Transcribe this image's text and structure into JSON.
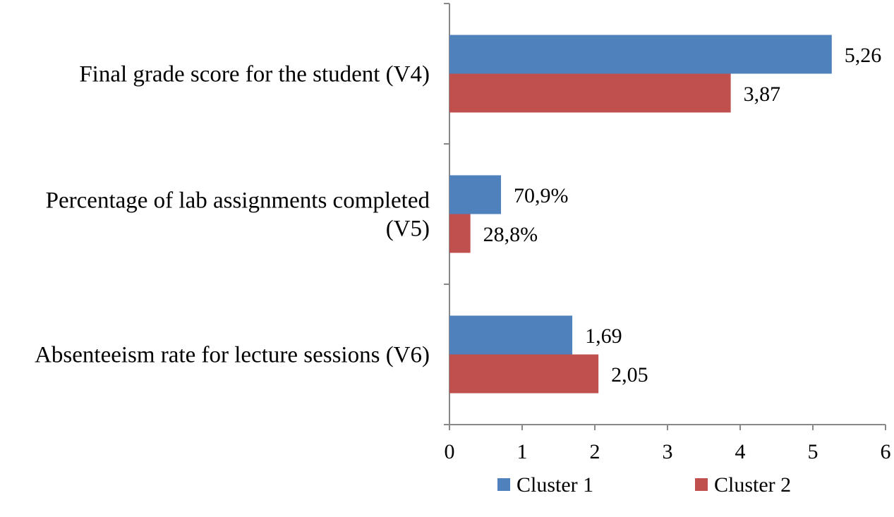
{
  "chart_data": {
    "type": "bar",
    "orientation": "horizontal",
    "categories": [
      [
        "Final grade score for the student (V4)"
      ],
      [
        "Percentage of lab assignments completed",
        "(V5)"
      ],
      [
        "Absenteeism rate for lecture sessions (V6)"
      ]
    ],
    "series": [
      {
        "name": "Cluster 1",
        "color": "#4F81BD",
        "values": [
          5.26,
          0.709,
          1.69
        ],
        "labels": [
          "5,26",
          "70,9%",
          "1,69"
        ]
      },
      {
        "name": "Cluster 2",
        "color": "#C0504D",
        "values": [
          3.87,
          0.288,
          2.05
        ],
        "labels": [
          "3,87",
          "28,8%",
          "2,05"
        ]
      }
    ],
    "xlim": [
      0,
      6
    ],
    "xticks": [
      "0",
      "1",
      "2",
      "3",
      "4",
      "5",
      "6"
    ],
    "title": "",
    "xlabel": "",
    "ylabel": "",
    "grid": false,
    "legend_position": "bottom"
  }
}
